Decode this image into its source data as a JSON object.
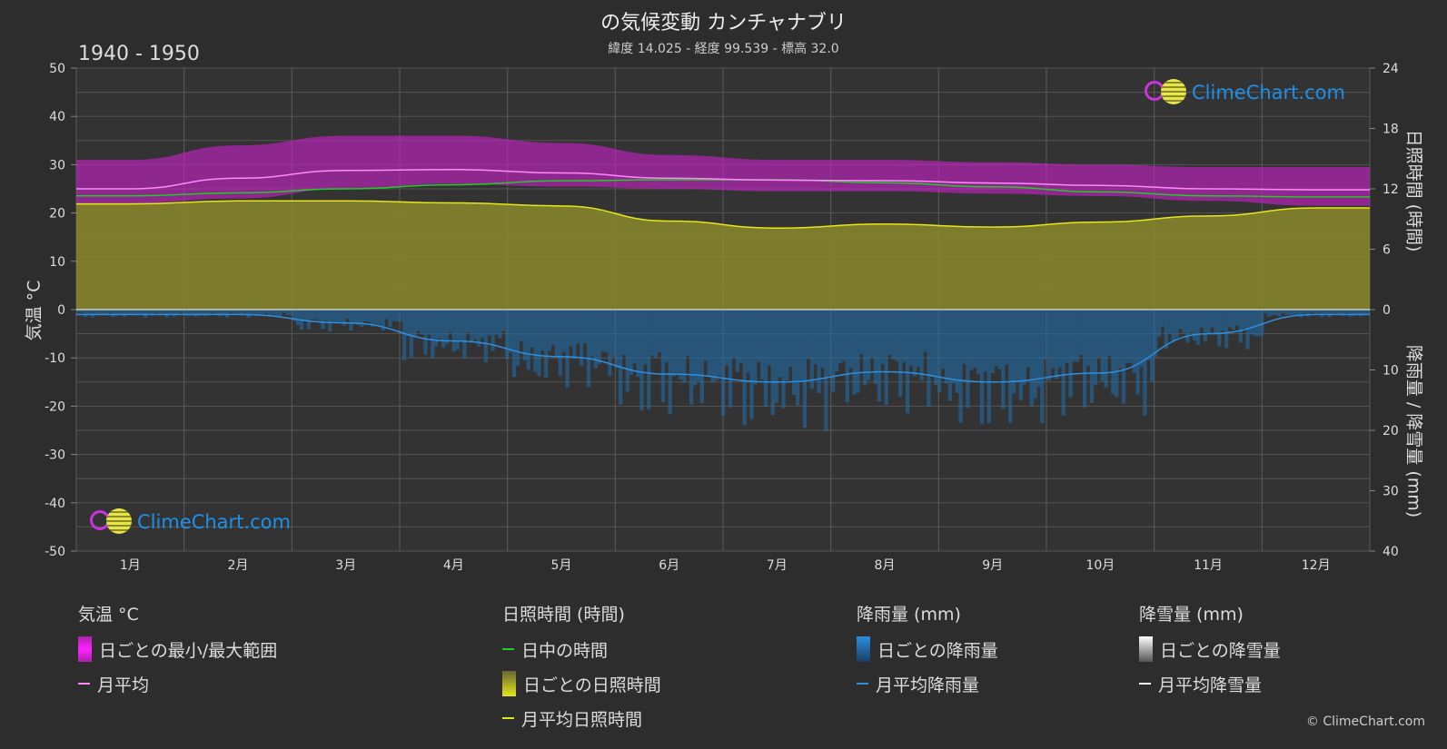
{
  "header": {
    "title": "の気候変動 カンチャナブリ",
    "subtitle": "緯度 14.025 - 経度 99.539 - 標高 32.0",
    "years": "1940 - 1950"
  },
  "brand": {
    "logo_text": "ClimeChart.com",
    "copyright": "© ClimeChart.com"
  },
  "colors": {
    "background": "#2d2d2d",
    "temp_range": "#cc22cc",
    "temp_avg": "#ff88ff",
    "daylight": "#22cc22",
    "sunshine_fill": "#8a8a2c",
    "sunshine_avg": "#e6e619",
    "rain": "#1e6fb0",
    "rain_avg": "#2e8fe0",
    "snow_avg": "#ffffff"
  },
  "chart_data": {
    "type": "line",
    "x_categories": [
      "1月",
      "2月",
      "3月",
      "4月",
      "5月",
      "6月",
      "7月",
      "8月",
      "9月",
      "10月",
      "11月",
      "12月"
    ],
    "axes": {
      "left": {
        "label": "気温 °C",
        "min": -50,
        "max": 50,
        "ticks": [
          50,
          40,
          30,
          20,
          10,
          0,
          -10,
          -20,
          -30,
          -40,
          -50
        ]
      },
      "right_top": {
        "label": "日照時間 (時間)",
        "min": 0,
        "max": 24,
        "ticks": [
          24,
          18,
          12,
          6,
          0
        ]
      },
      "right_bottom": {
        "label": "降雨量 / 降雪量 (mm)",
        "min": 0,
        "max": 40,
        "ticks": [
          0,
          10,
          20,
          30,
          40
        ],
        "inverted": true
      }
    },
    "series": [
      {
        "name": "日ごとの最小/最大範囲",
        "type": "band",
        "unit": "°C",
        "low": [
          22,
          23,
          25,
          26,
          25.5,
          25,
          24.5,
          24.5,
          24,
          23.5,
          22.5,
          21.5
        ],
        "high": [
          31,
          34,
          36,
          36,
          34.5,
          32,
          31,
          31,
          30.5,
          30,
          29.5,
          29.5
        ]
      },
      {
        "name": "月平均",
        "unit": "°C",
        "values": [
          25,
          27.2,
          28.8,
          29,
          28.3,
          27.2,
          26.8,
          26.7,
          26.2,
          25.7,
          25,
          24.8
        ]
      },
      {
        "name": "日中の時間",
        "unit": "時間",
        "values": [
          11.3,
          11.6,
          12,
          12.4,
          12.8,
          12.9,
          12.9,
          12.6,
          12.2,
          11.7,
          11.3,
          11.2
        ]
      },
      {
        "name": "日ごとの日照時間",
        "type": "fill",
        "unit": "時間",
        "values": [
          10.5,
          10.8,
          10.8,
          10.6,
          10.3,
          8.8,
          8.1,
          8.5,
          8.2,
          8.7,
          9.3,
          10.1
        ]
      },
      {
        "name": "月平均日照時間",
        "unit": "時間",
        "values": [
          10.5,
          10.8,
          10.8,
          10.6,
          10.3,
          8.8,
          8.1,
          8.5,
          8.2,
          8.7,
          9.3,
          10.1
        ]
      },
      {
        "name": "月平均降雨量",
        "unit": "mm",
        "values": [
          0.8,
          0.8,
          2.2,
          5.2,
          7.8,
          10.7,
          12.0,
          10.3,
          12.0,
          10.5,
          4.0,
          0.8
        ]
      },
      {
        "name": "月平均降雪量",
        "unit": "mm",
        "values": [
          0,
          0,
          0,
          0,
          0,
          0,
          0,
          0,
          0,
          0,
          0,
          0
        ]
      }
    ],
    "grid": true
  },
  "legend": {
    "temp": {
      "title": "気温 °C",
      "items": [
        "日ごとの最小/最大範囲",
        "月平均"
      ]
    },
    "sun": {
      "title": "日照時間 (時間)",
      "items": [
        "日中の時間",
        "日ごとの日照時間",
        "月平均日照時間"
      ]
    },
    "rain": {
      "title": "降雨量 (mm)",
      "items": [
        "日ごとの降雨量",
        "月平均降雨量"
      ]
    },
    "snow": {
      "title": "降雪量 (mm)",
      "items": [
        "日ごとの降雪量",
        "月平均降雪量"
      ]
    }
  }
}
